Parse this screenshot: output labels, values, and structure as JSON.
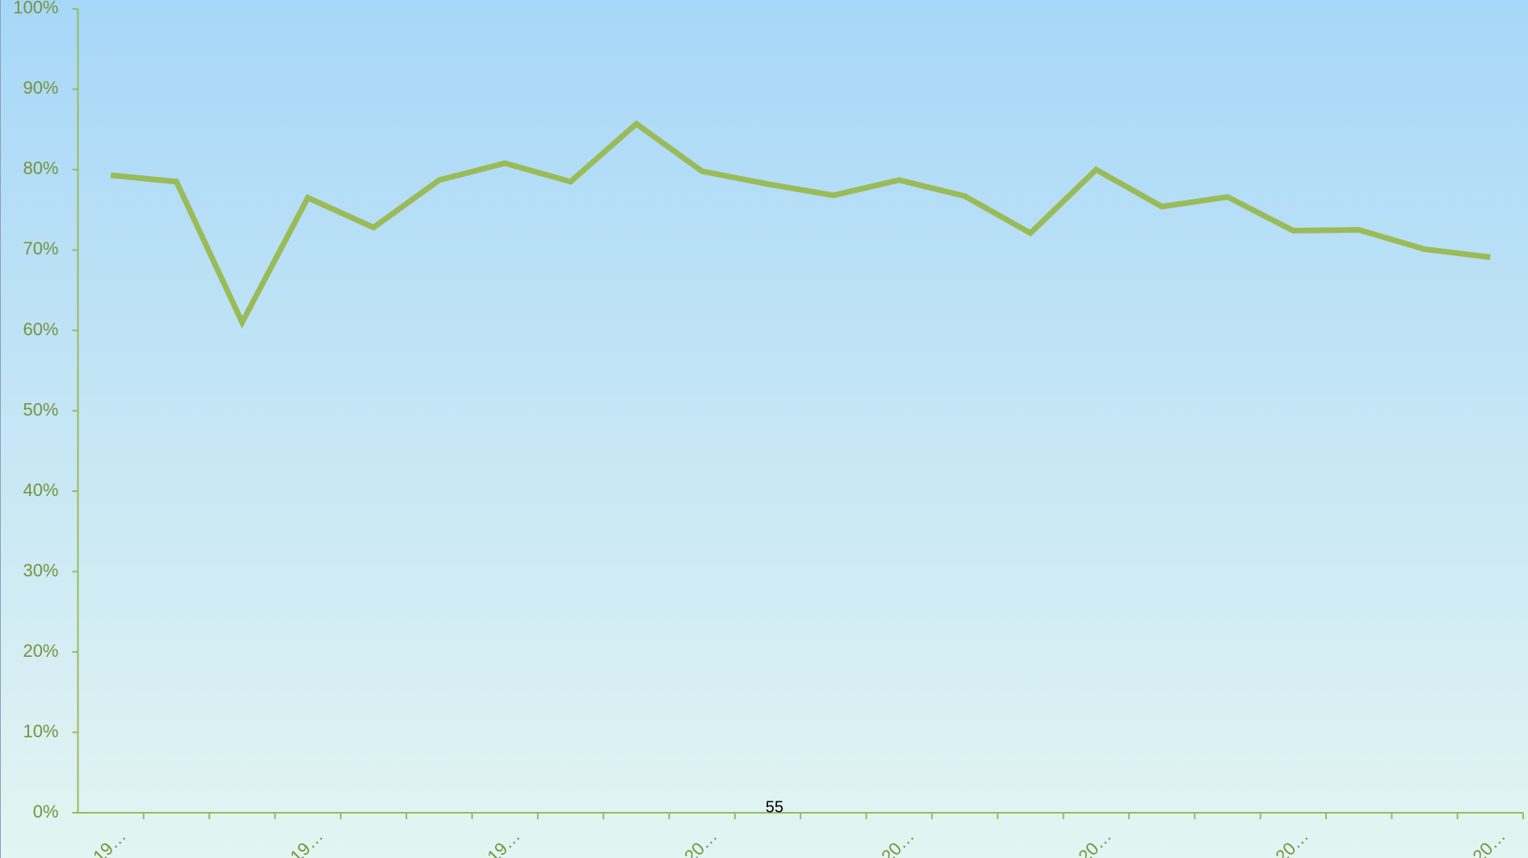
{
  "chart_data": {
    "type": "line",
    "categories": [
      "19…",
      null,
      null,
      "19…",
      null,
      null,
      "19…",
      null,
      null,
      "20…",
      null,
      null,
      "20…",
      null,
      null,
      "20…",
      null,
      null,
      "20…",
      null,
      null,
      "20…"
    ],
    "series": [
      {
        "color": "#9bbb59",
        "values": [
          79.3,
          78.5,
          61.0,
          76.5,
          72.8,
          78.7,
          80.8,
          78.5,
          85.7,
          79.8,
          78.2,
          76.8,
          78.7,
          76.7,
          72.1,
          80.0,
          75.4,
          76.6,
          72.4,
          72.5,
          70.1,
          69.1
        ]
      }
    ],
    "ylim": [
      0,
      100
    ],
    "yticks": [
      {
        "value": 0,
        "label": "0%"
      },
      {
        "value": 10,
        "label": "10%"
      },
      {
        "value": 20,
        "label": "20%"
      },
      {
        "value": 30,
        "label": "30%"
      },
      {
        "value": 40,
        "label": "40%"
      },
      {
        "value": 50,
        "label": "50%"
      },
      {
        "value": 60,
        "label": "60%"
      },
      {
        "value": 70,
        "label": "70%"
      },
      {
        "value": 80,
        "label": "80%"
      },
      {
        "value": 90,
        "label": "90%"
      },
      {
        "value": 100,
        "label": "100%"
      }
    ],
    "grid": false,
    "annotation": "55"
  }
}
